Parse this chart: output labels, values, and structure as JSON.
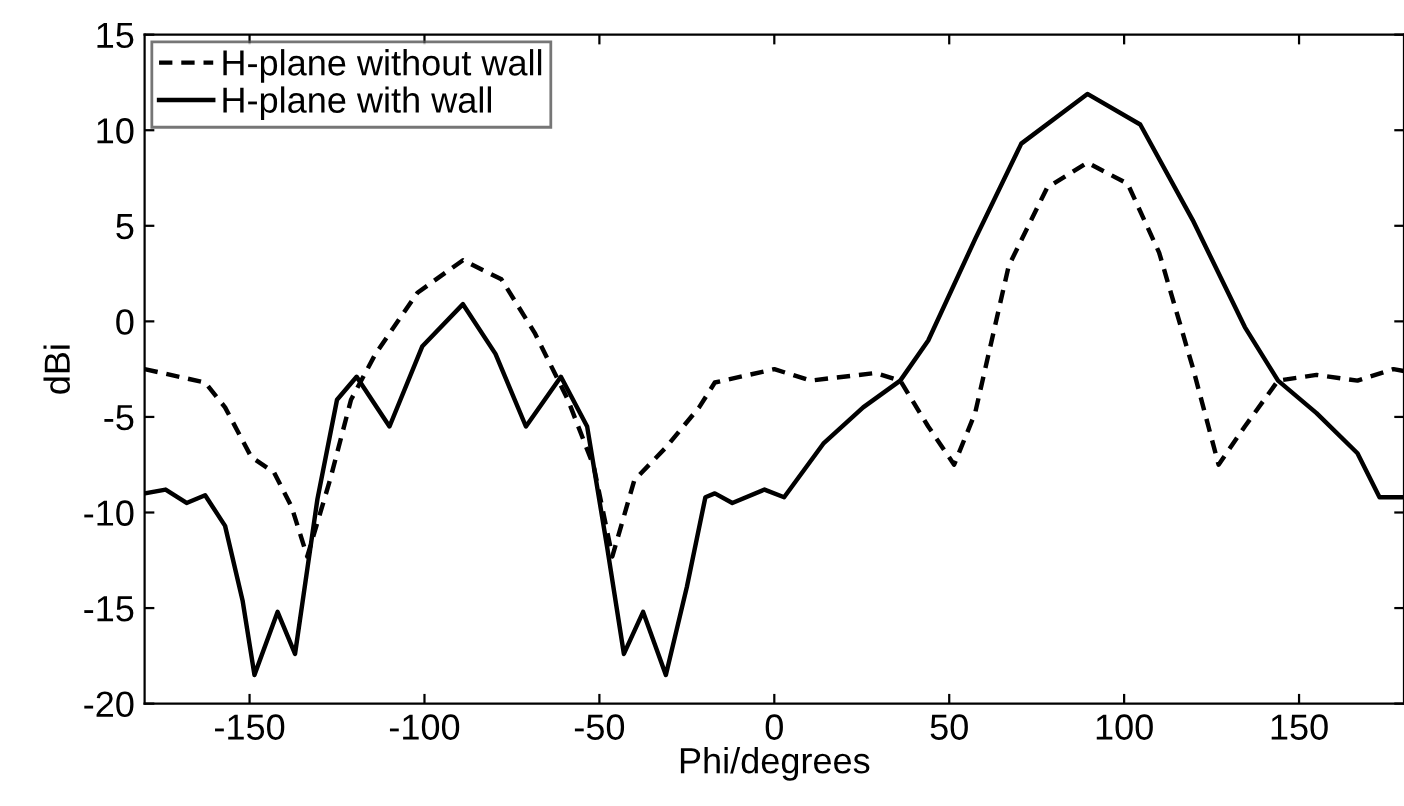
{
  "chart_data": {
    "type": "line",
    "xlabel": "Phi/degrees",
    "ylabel": "dBi",
    "xlim": [
      -180,
      180
    ],
    "ylim": [
      -20,
      15
    ],
    "xticks": [
      -150,
      -100,
      -50,
      0,
      50,
      100,
      150
    ],
    "yticks": [
      -20,
      -15,
      -10,
      -5,
      0,
      5,
      10,
      15
    ],
    "grid": false,
    "legend": "top left",
    "marker": "none",
    "series": [
      {
        "name": "H-plane without wall",
        "color": "#000000",
        "line_style": "dashed",
        "x": [
          -180,
          -162.7,
          -157,
          -149.5,
          -143,
          -138,
          -133.5,
          -127,
          -121,
          -114,
          -102,
          -89,
          -78,
          -68.5,
          -59,
          -51.6,
          -46.3,
          -40,
          -31,
          -21.5,
          -17,
          0,
          10.4,
          29,
          36,
          44,
          51.4,
          57.4,
          67,
          78,
          89.5,
          101,
          110,
          119.6,
          127,
          134.5,
          144,
          155,
          166.7,
          177,
          180
        ],
        "values": [
          -2.5,
          -3.2,
          -4.5,
          -7.1,
          -7.9,
          -9.7,
          -12.3,
          -8.3,
          -4.1,
          -1.7,
          1.5,
          3.2,
          2.2,
          -0.6,
          -4.1,
          -7.6,
          -12.3,
          -8.3,
          -6.6,
          -4.5,
          -3.2,
          -2.5,
          -3.1,
          -2.7,
          -3.1,
          -5.5,
          -7.5,
          -4.8,
          2.9,
          7.0,
          8.3,
          7.2,
          3.6,
          -2.4,
          -7.5,
          -5.5,
          -3.1,
          -2.8,
          -3.1,
          -2.5,
          -2.6
        ]
      },
      {
        "name": "H-plane with wall",
        "color": "#000000",
        "line_style": "solid",
        "x": [
          -180,
          -174,
          -168,
          -162.7,
          -157,
          -152,
          -148.6,
          -142,
          -137,
          -130.6,
          -125,
          -119.4,
          -110,
          -100.6,
          -89,
          -79.7,
          -71,
          -61,
          -53.5,
          -47.8,
          -43,
          -37.5,
          -31,
          -25,
          -19.7,
          -17,
          -12,
          -2.8,
          2.8,
          14,
          25.4,
          36,
          44,
          57.4,
          70.6,
          89.5,
          104.6,
          119.6,
          134.5,
          144,
          155,
          166.7,
          173,
          177,
          180
        ],
        "values": [
          -9.0,
          -8.8,
          -9.5,
          -9.1,
          -10.7,
          -14.6,
          -18.5,
          -15.2,
          -17.4,
          -9.3,
          -4.1,
          -2.9,
          -5.5,
          -1.3,
          0.9,
          -1.7,
          -5.5,
          -2.9,
          -5.5,
          -11.8,
          -17.4,
          -15.2,
          -18.5,
          -13.9,
          -9.2,
          -9.0,
          -9.5,
          -8.8,
          -9.2,
          -6.4,
          -4.5,
          -3.1,
          -1.0,
          4.3,
          9.3,
          11.9,
          10.3,
          5.3,
          -0.3,
          -3.1,
          -4.8,
          -6.9,
          -9.2,
          -9.2,
          -9.2
        ]
      }
    ]
  }
}
